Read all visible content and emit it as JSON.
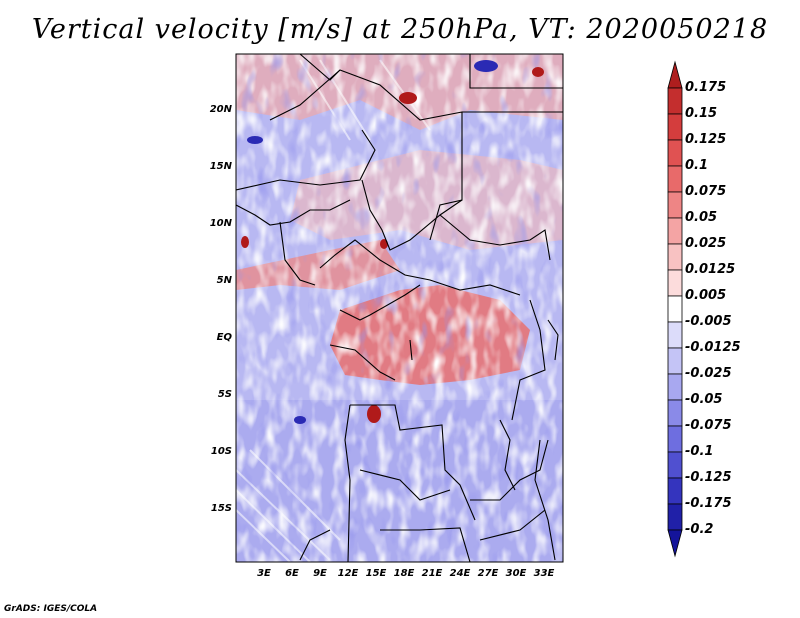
{
  "title": "Vertical velocity [m/s] at 250hPa, VT: 2020050218",
  "lat_labels": [
    "20N",
    "15N",
    "10N",
    "5N",
    "EQ",
    "5S",
    "10S",
    "15S"
  ],
  "lon_labels": [
    "3E",
    "6E",
    "9E",
    "12E",
    "15E",
    "18E",
    "21E",
    "24E",
    "27E",
    "30E",
    "33E"
  ],
  "colorbar": {
    "labels": [
      "0.175",
      "0.15",
      "0.125",
      "0.1",
      "0.075",
      "0.05",
      "0.025",
      "0.0125",
      "0.005",
      "-0.005",
      "-0.0125",
      "-0.025",
      "-0.05",
      "-0.075",
      "-0.1",
      "-0.125",
      "-0.175",
      "-0.2"
    ],
    "colors": [
      "#ae1e1e",
      "#c42e2e",
      "#d43d3d",
      "#e05252",
      "#e86a6a",
      "#ee8585",
      "#f4a4a4",
      "#f8c2c2",
      "#fcdcdc",
      "#ffffff",
      "#dcdcfa",
      "#c4c4f6",
      "#a8a8f0",
      "#8a8ae8",
      "#6e6ee0",
      "#5050d0",
      "#3434be",
      "#2020a8",
      "#14149a"
    ]
  },
  "credit": "GrADS: IGES/COLA"
}
